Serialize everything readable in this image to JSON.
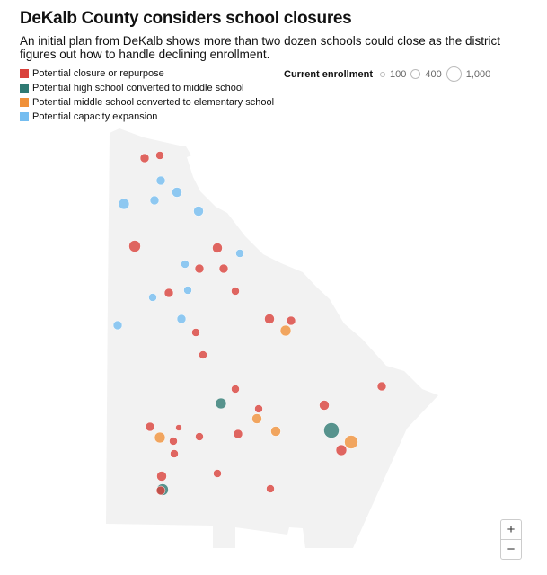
{
  "title": "DeKalb County considers school closures",
  "subtitle": "An initial plan from DeKalb shows more than two dozen schools could close as the district figures out how to handle declining enrollment.",
  "legend": [
    {
      "label": "Potential closure or repurpose",
      "color": "#d9413b"
    },
    {
      "label": "Potential high school converted to middle school",
      "color": "#2f7a73"
    },
    {
      "label": "Potential middle school converted to elementary school",
      "color": "#f0913a"
    },
    {
      "label": "Potential capacity expansion",
      "color": "#74bdf0"
    }
  ],
  "size_legend": {
    "title": "Current enrollment",
    "items": [
      "100",
      "400",
      "1,000"
    ]
  },
  "zoom_controls": {
    "in": "+",
    "out": "−"
  }
}
